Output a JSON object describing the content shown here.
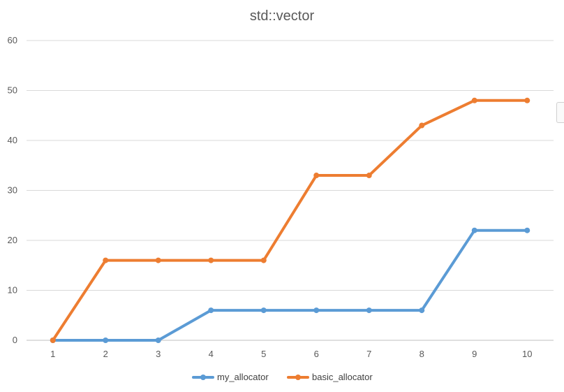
{
  "chart_data": {
    "type": "line",
    "title": "std::vector",
    "categories": [
      "1",
      "2",
      "3",
      "4",
      "5",
      "6",
      "7",
      "8",
      "9",
      "10"
    ],
    "series": [
      {
        "name": "my_allocator",
        "color": "#5B9BD5",
        "values": [
          0,
          0,
          0,
          6,
          6,
          6,
          6,
          6,
          22,
          22
        ]
      },
      {
        "name": "basic_allocator",
        "color": "#ED7D31",
        "values": [
          0,
          16,
          16,
          16,
          16,
          33,
          33,
          43,
          48,
          48
        ]
      }
    ],
    "yticks": [
      0,
      10,
      20,
      30,
      40,
      50,
      60
    ],
    "ylim": [
      0,
      60
    ],
    "xlabel": "",
    "ylabel": "",
    "grid": true,
    "legend": "bottom"
  }
}
